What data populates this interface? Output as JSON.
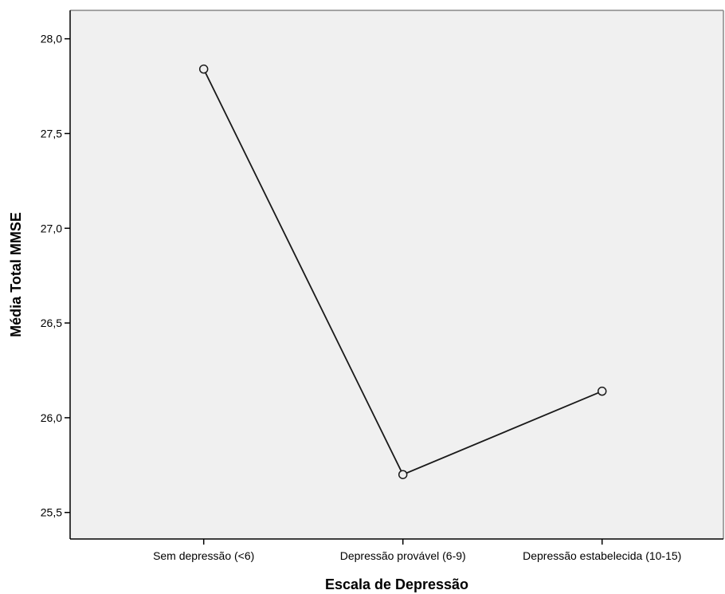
{
  "chart_data": {
    "type": "line",
    "title": "",
    "xlabel": "Escala de Depressão",
    "ylabel": "Média Total MMSE",
    "categories": [
      "Sem depressão (<6)",
      "Depressão provável (6-9)",
      "Depressão estabelecida (10-15)"
    ],
    "series": [
      {
        "values": [
          27.84,
          25.7,
          26.14
        ]
      }
    ],
    "ylim": [
      25.36,
      28.15
    ],
    "yticks": [
      25.5,
      26.0,
      26.5,
      27.0,
      27.5,
      28.0
    ],
    "ytick_labels": [
      "25,5",
      "26,0",
      "26,5",
      "27,0",
      "27,5",
      "28,0"
    ],
    "grid": false,
    "legend": "none",
    "colors": {
      "plot_background": "#f0f0f0",
      "line": "#1a1a1a",
      "marker_fill": "#f0f0f0",
      "axis": "#000000",
      "frame": "#888888"
    }
  }
}
